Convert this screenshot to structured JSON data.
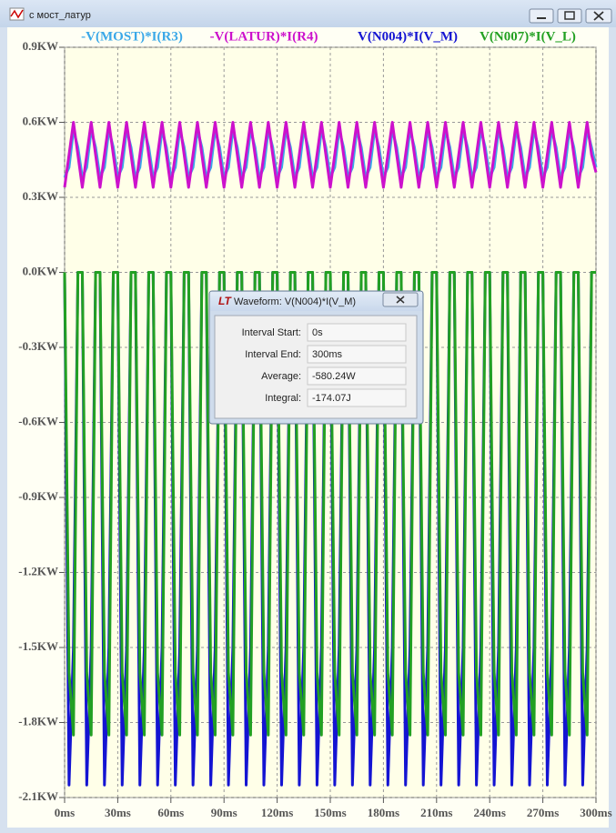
{
  "window": {
    "title": "с мост_латур"
  },
  "dialog": {
    "title": "Waveform: V(N004)*I(V_M)",
    "rows": [
      {
        "label": "Interval Start:",
        "value": "0s"
      },
      {
        "label": "Interval End:",
        "value": "300ms"
      },
      {
        "label": "Average:",
        "value": "-580.24W"
      },
      {
        "label": "Integral:",
        "value": "-174.07J"
      }
    ]
  },
  "chart_data": {
    "type": "line",
    "grid": true,
    "xlim": [
      0,
      300
    ],
    "xticks": [
      {
        "value": 0,
        "label": "0ms"
      },
      {
        "value": 30,
        "label": "30ms"
      },
      {
        "value": 60,
        "label": "60ms"
      },
      {
        "value": 90,
        "label": "90ms"
      },
      {
        "value": 120,
        "label": "120ms"
      },
      {
        "value": 150,
        "label": "150ms"
      },
      {
        "value": 180,
        "label": "180ms"
      },
      {
        "value": 210,
        "label": "210ms"
      },
      {
        "value": 240,
        "label": "240ms"
      },
      {
        "value": 270,
        "label": "270ms"
      },
      {
        "value": 300,
        "label": "300ms"
      }
    ],
    "ylim": [
      -2.1,
      0.9
    ],
    "yticks": [
      {
        "value": 0.9,
        "label": "0.9KW"
      },
      {
        "value": 0.6,
        "label": "0.6KW"
      },
      {
        "value": 0.3,
        "label": "0.3KW"
      },
      {
        "value": 0,
        "label": "0.0KW"
      },
      {
        "value": -0.3,
        "label": "-0.3KW"
      },
      {
        "value": -0.6,
        "label": "-0.6KW"
      },
      {
        "value": -0.9,
        "label": "-0.9KW"
      },
      {
        "value": -1.2,
        "label": "-1.2KW"
      },
      {
        "value": -1.5,
        "label": "-1.5KW"
      },
      {
        "value": -1.8,
        "label": "-1.8KW"
      },
      {
        "value": -2.1,
        "label": "-2.1KW"
      }
    ],
    "x": [
      0,
      2.5,
      5,
      7.5,
      10,
      12.5,
      15,
      17.5,
      20,
      22.5,
      25,
      27.5,
      30,
      32.5,
      35,
      37.5,
      40,
      42.5,
      45,
      47.5,
      50,
      52.5,
      55,
      57.5,
      60,
      62.5,
      65,
      67.5,
      70,
      72.5,
      75,
      77.5,
      80,
      82.5,
      85,
      87.5,
      90,
      92.5,
      95,
      97.5,
      100,
      102.5,
      105,
      107.5,
      110,
      112.5,
      115,
      117.5,
      120,
      122.5,
      125,
      127.5,
      130,
      132.5,
      135,
      137.5,
      140,
      142.5,
      145,
      147.5,
      150,
      152.5,
      155,
      157.5,
      160,
      162.5,
      165,
      167.5,
      170,
      172.5,
      175,
      177.5,
      180,
      182.5,
      185,
      187.5,
      190,
      192.5,
      195,
      197.5,
      200,
      202.5,
      205,
      207.5,
      210,
      212.5,
      215,
      217.5,
      220,
      222.5,
      225,
      227.5,
      230,
      232.5,
      235,
      237.5,
      240,
      242.5,
      245,
      247.5,
      250,
      252.5,
      255,
      257.5,
      260,
      262.5,
      265,
      267.5,
      270,
      272.5,
      275,
      277.5,
      280,
      282.5,
      285,
      287.5,
      290,
      292.5,
      295,
      297.5,
      300
    ],
    "series": [
      {
        "name": "-V(MOST)*I(R3)",
        "color": "#3aa8e8",
        "values": [
          0.38,
          0.42,
          0.57,
          0.5,
          0.38,
          0.42,
          0.57,
          0.5,
          0.38,
          0.42,
          0.57,
          0.5,
          0.38,
          0.42,
          0.57,
          0.5,
          0.38,
          0.42,
          0.57,
          0.5,
          0.38,
          0.42,
          0.57,
          0.5,
          0.38,
          0.42,
          0.57,
          0.5,
          0.38,
          0.42,
          0.57,
          0.5,
          0.38,
          0.42,
          0.57,
          0.5,
          0.38,
          0.42,
          0.57,
          0.5,
          0.38,
          0.42,
          0.57,
          0.5,
          0.38,
          0.42,
          0.57,
          0.5,
          0.38,
          0.42,
          0.57,
          0.5,
          0.38,
          0.42,
          0.57,
          0.5,
          0.38,
          0.42,
          0.57,
          0.5,
          0.38,
          0.42,
          0.57,
          0.5,
          0.38,
          0.42,
          0.57,
          0.5,
          0.38,
          0.42,
          0.57,
          0.5,
          0.38,
          0.42,
          0.57,
          0.5,
          0.38,
          0.42,
          0.57,
          0.5,
          0.38,
          0.42,
          0.57,
          0.5,
          0.38,
          0.42,
          0.57,
          0.5,
          0.38,
          0.42,
          0.57,
          0.5,
          0.38,
          0.42,
          0.57,
          0.5,
          0.38,
          0.42,
          0.57,
          0.5,
          0.38,
          0.42,
          0.57,
          0.5,
          0.38,
          0.42,
          0.57,
          0.5,
          0.38,
          0.42,
          0.57,
          0.5,
          0.38,
          0.42,
          0.57,
          0.5,
          0.38,
          0.42,
          0.57,
          0.5,
          0.42
        ]
      },
      {
        "name": "-V(LATUR)*I(R4)",
        "color": "#cc11cc",
        "values": [
          0.34,
          0.47,
          0.6,
          0.47,
          0.34,
          0.47,
          0.6,
          0.47,
          0.34,
          0.47,
          0.6,
          0.47,
          0.34,
          0.47,
          0.6,
          0.47,
          0.34,
          0.47,
          0.6,
          0.47,
          0.34,
          0.47,
          0.6,
          0.47,
          0.34,
          0.47,
          0.6,
          0.47,
          0.34,
          0.47,
          0.6,
          0.47,
          0.34,
          0.47,
          0.6,
          0.47,
          0.34,
          0.47,
          0.6,
          0.47,
          0.34,
          0.47,
          0.6,
          0.47,
          0.34,
          0.47,
          0.6,
          0.47,
          0.34,
          0.47,
          0.6,
          0.47,
          0.34,
          0.47,
          0.6,
          0.47,
          0.34,
          0.47,
          0.6,
          0.47,
          0.34,
          0.47,
          0.6,
          0.47,
          0.34,
          0.47,
          0.6,
          0.47,
          0.34,
          0.47,
          0.6,
          0.47,
          0.34,
          0.47,
          0.6,
          0.47,
          0.34,
          0.47,
          0.6,
          0.47,
          0.34,
          0.47,
          0.6,
          0.47,
          0.34,
          0.47,
          0.6,
          0.47,
          0.34,
          0.47,
          0.6,
          0.47,
          0.34,
          0.47,
          0.6,
          0.47,
          0.34,
          0.47,
          0.6,
          0.47,
          0.34,
          0.47,
          0.6,
          0.47,
          0.34,
          0.47,
          0.6,
          0.47,
          0.34,
          0.47,
          0.6,
          0.47,
          0.34,
          0.47,
          0.6,
          0.47,
          0.34,
          0.47,
          0.6,
          0.47,
          0.4
        ]
      },
      {
        "name": "V(N004)*I(V_M)",
        "color": "#1414d2",
        "values": [
          0,
          -2.05,
          -1.5,
          0,
          0,
          -2.05,
          -1.5,
          0,
          0,
          -2.05,
          -1.5,
          0,
          0,
          -2.05,
          -1.5,
          0,
          0,
          -2.05,
          -1.5,
          0,
          0,
          -2.05,
          -1.5,
          0,
          0,
          -2.05,
          -1.5,
          0,
          0,
          -2.05,
          -1.5,
          0,
          0,
          -2.05,
          -1.5,
          0,
          0,
          -2.05,
          -1.5,
          0,
          0,
          -2.05,
          -1.5,
          0,
          0,
          -2.05,
          -1.5,
          0,
          0,
          -2.05,
          -1.5,
          0,
          0,
          -2.05,
          -1.5,
          0,
          0,
          -2.05,
          -1.5,
          0,
          0,
          -2.05,
          -1.5,
          0,
          0,
          -2.05,
          -1.5,
          0,
          0,
          -2.05,
          -1.5,
          0,
          0,
          -2.05,
          -1.5,
          0,
          0,
          -2.05,
          -1.5,
          0,
          0,
          -2.05,
          -1.5,
          0,
          0,
          -2.05,
          -1.5,
          0,
          0,
          -2.05,
          -1.5,
          0,
          0,
          -2.05,
          -1.5,
          0,
          0,
          -2.05,
          -1.5,
          0,
          0,
          -2.05,
          -1.5,
          0,
          0,
          -2.05,
          -1.5,
          0,
          0,
          -2.05,
          -1.5,
          0,
          0,
          -2.05,
          -1.5,
          0,
          0,
          -2.05,
          -1.5,
          0,
          0
        ]
      },
      {
        "name": "V(N007)*I(V_L)",
        "color": "#22a022",
        "values": [
          0,
          -1.6,
          -1.85,
          0,
          0,
          -1.6,
          -1.85,
          0,
          0,
          -1.6,
          -1.85,
          0,
          0,
          -1.6,
          -1.85,
          0,
          0,
          -1.6,
          -1.85,
          0,
          0,
          -1.6,
          -1.85,
          0,
          0,
          -1.6,
          -1.85,
          0,
          0,
          -1.6,
          -1.85,
          0,
          0,
          -1.6,
          -1.85,
          0,
          0,
          -1.6,
          -1.85,
          0,
          0,
          -1.6,
          -1.85,
          0,
          0,
          -1.6,
          -1.85,
          0,
          0,
          -1.6,
          -1.85,
          0,
          0,
          -1.6,
          -1.85,
          0,
          0,
          -1.6,
          -1.85,
          0,
          0,
          -1.6,
          -1.85,
          0,
          0,
          -1.6,
          -1.85,
          0,
          0,
          -1.6,
          -1.85,
          0,
          0,
          -1.6,
          -1.85,
          0,
          0,
          -1.6,
          -1.85,
          0,
          0,
          -1.6,
          -1.85,
          0,
          0,
          -1.6,
          -1.85,
          0,
          0,
          -1.6,
          -1.85,
          0,
          0,
          -1.6,
          -1.85,
          0,
          0,
          -1.6,
          -1.85,
          0,
          0,
          -1.6,
          -1.85,
          0,
          0,
          -1.6,
          -1.85,
          0,
          0,
          -1.6,
          -1.85,
          0,
          0,
          -1.6,
          -1.85,
          0,
          0,
          -1.6,
          -1.85,
          0,
          0
        ]
      }
    ]
  }
}
